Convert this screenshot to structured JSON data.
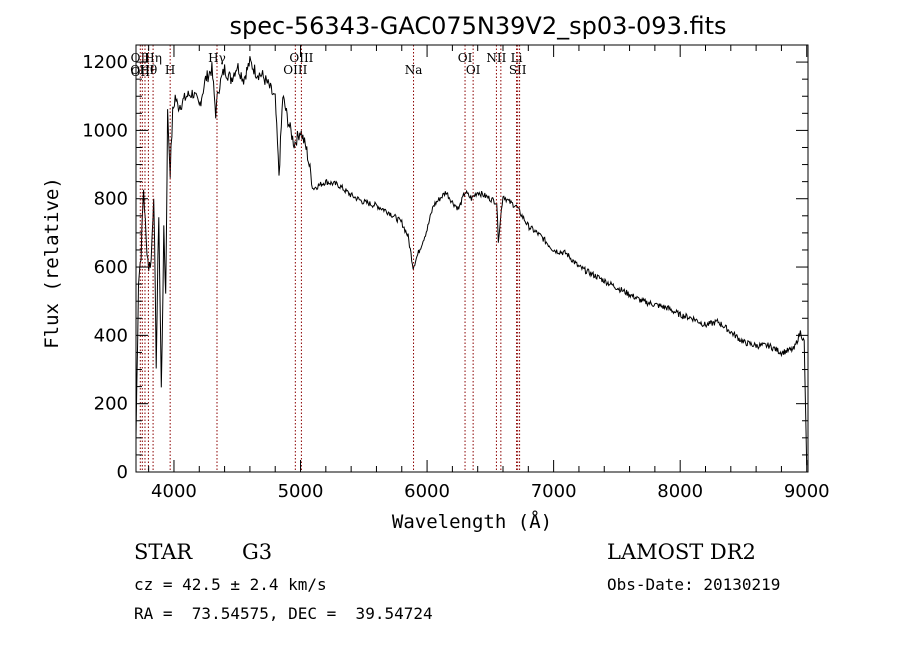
{
  "chart_data": {
    "type": "line",
    "title": "spec-56343-GAC075N39V2_sp03-093.fits",
    "xlabel": "Wavelength (Å)",
    "ylabel": "Flux (relative)",
    "xlim": [
      3700,
      9010
    ],
    "ylim": [
      0,
      1250
    ],
    "xticks": [
      4000,
      5000,
      6000,
      7000,
      8000,
      9000
    ],
    "yticks": [
      0,
      200,
      400,
      600,
      800,
      1000,
      1200
    ],
    "grid": false,
    "legend": "none",
    "line_color": "#000000",
    "marker_color": "#8b0000",
    "series": [
      {
        "x": [
          3700,
          3720,
          3740,
          3760,
          3780,
          3800,
          3820,
          3840,
          3860,
          3880,
          3900,
          3920,
          3935,
          3950,
          3970,
          3990,
          4010,
          4030,
          4060,
          4100,
          4150,
          4200,
          4250,
          4300,
          4330,
          4350,
          4400,
          4450,
          4500,
          4550,
          4600,
          4650,
          4700,
          4750,
          4800,
          4830,
          4860,
          4900,
          4950,
          5000,
          5050,
          5100,
          5200,
          5300,
          5400,
          5500,
          5600,
          5700,
          5800,
          5850,
          5890,
          5950,
          6000,
          6050,
          6100,
          6150,
          6200,
          6250,
          6300,
          6350,
          6400,
          6450,
          6500,
          6550,
          6563,
          6600,
          6650,
          6700,
          6750,
          6800,
          6900,
          7000,
          7100,
          7200,
          7300,
          7400,
          7500,
          7600,
          7700,
          7800,
          7900,
          8000,
          8100,
          8200,
          8300,
          8400,
          8500,
          8600,
          8700,
          8800,
          8900,
          8950,
          8980,
          9000
        ],
        "y": [
          100,
          560,
          640,
          830,
          680,
          600,
          620,
          820,
          320,
          760,
          240,
          700,
          520,
          1050,
          880,
          1050,
          1100,
          1070,
          1080,
          1100,
          1110,
          1070,
          1150,
          1180,
          1050,
          1120,
          1180,
          1150,
          1190,
          1150,
          1200,
          1170,
          1160,
          1130,
          1090,
          870,
          1100,
          1030,
          960,
          1000,
          940,
          830,
          850,
          840,
          810,
          790,
          780,
          760,
          730,
          690,
          600,
          660,
          710,
          780,
          800,
          820,
          790,
          770,
          820,
          800,
          820,
          810,
          800,
          790,
          680,
          810,
          790,
          780,
          750,
          720,
          690,
          650,
          640,
          600,
          580,
          560,
          540,
          520,
          500,
          490,
          480,
          460,
          450,
          430,
          440,
          410,
          380,
          370,
          370,
          350,
          360,
          410,
          380,
          20
        ]
      }
    ],
    "markers": [
      {
        "x": 3734,
        "labels": [
          "OII",
          "OII"
        ]
      },
      {
        "x": 3750,
        "labels": [
          "OIII"
        ]
      },
      {
        "x": 3771,
        "labels": [
          ""
        ]
      },
      {
        "x": 3798,
        "labels": [
          "Hθ"
        ]
      },
      {
        "x": 3835,
        "labels": [
          "Hη"
        ]
      },
      {
        "x": 3970,
        "labels": [
          "H"
        ]
      },
      {
        "x": 4340,
        "labels": [
          "Hγ"
        ]
      },
      {
        "x": 4959,
        "labels": [
          "OIII"
        ]
      },
      {
        "x": 5007,
        "labels": [
          "OIII"
        ]
      },
      {
        "x": 5893,
        "labels": [
          "Na"
        ]
      },
      {
        "x": 6300,
        "labels": [
          "OI"
        ]
      },
      {
        "x": 6364,
        "labels": [
          "OI"
        ]
      },
      {
        "x": 6548,
        "labels": [
          "NII"
        ]
      },
      {
        "x": 6583,
        "labels": [
          ""
        ]
      },
      {
        "x": 6707,
        "labels": [
          "Li"
        ]
      },
      {
        "x": 6716,
        "labels": [
          "SII"
        ]
      },
      {
        "x": 6731,
        "labels": [
          ""
        ]
      }
    ]
  },
  "info": {
    "object_class": "STAR",
    "subclass": "G3",
    "survey": "LAMOST DR2",
    "cz": "cz = 42.5 ± 2.4 km/s",
    "obs_date": "Obs-Date: 20130219",
    "coords": "RA =  73.54575, DEC =  39.54724"
  }
}
